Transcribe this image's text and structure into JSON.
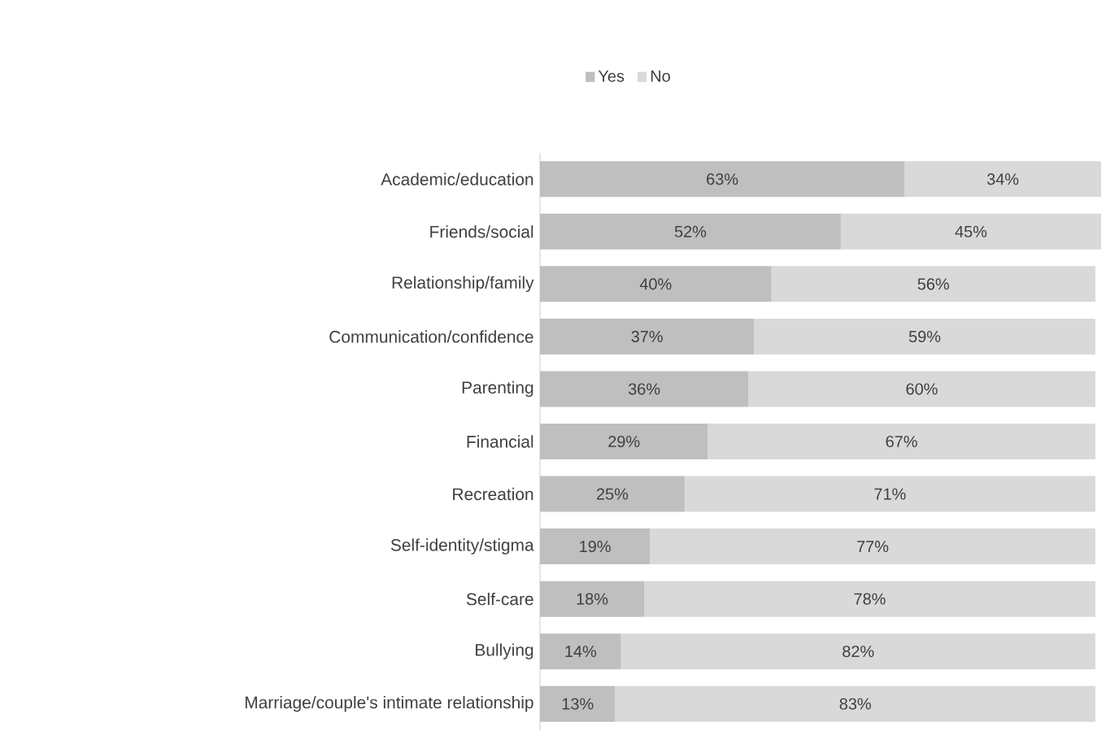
{
  "chart_data": {
    "type": "bar",
    "orientation": "horizontal",
    "stacked": true,
    "legend": "top",
    "categories": [
      "Academic/education",
      "Friends/social",
      "Relationship/family",
      "Communication/confidence",
      "Parenting",
      "Financial",
      "Recreation",
      "Self-identity/stigma",
      "Self-care",
      "Bullying",
      "Marriage/couple's intimate relationship"
    ],
    "series": [
      {
        "name": "Yes",
        "color": "#bfbfbf",
        "values": [
          63,
          52,
          40,
          37,
          36,
          29,
          25,
          19,
          18,
          14,
          13
        ],
        "value_labels": [
          "63%",
          "52%",
          "40%",
          "37%",
          "36%",
          "29%",
          "25%",
          "19%",
          "18%",
          "14%",
          "13%"
        ]
      },
      {
        "name": "No",
        "color": "#d9d9d9",
        "values": [
          34,
          45,
          56,
          59,
          60,
          67,
          71,
          77,
          78,
          82,
          83
        ],
        "value_labels": [
          "34%",
          "45%",
          "56%",
          "59%",
          "60%",
          "67%",
          "71%",
          "77%",
          "78%",
          "82%",
          "83%"
        ]
      }
    ]
  }
}
